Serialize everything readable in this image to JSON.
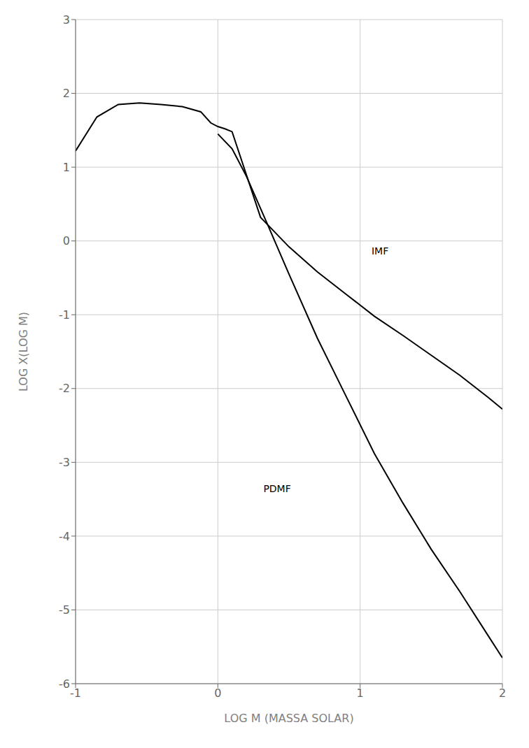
{
  "chart_data": {
    "type": "line",
    "xlabel": "LOG M (MASSA SOLAR)",
    "ylabel": "LOG X(LOG M)",
    "xlim": [
      -1,
      2
    ],
    "ylim": [
      -6,
      3
    ],
    "xticks": [
      -1,
      0,
      1,
      2
    ],
    "yticks": [
      -6,
      -5,
      -4,
      -3,
      -2,
      -1,
      0,
      1,
      2,
      3
    ],
    "grid": true,
    "series": [
      {
        "color": "#000000",
        "x": [
          -1.0,
          -0.85,
          -0.7,
          -0.55,
          -0.4,
          -0.25,
          -0.12,
          -0.05,
          0.0,
          0.05,
          0.1,
          0.3,
          0.32,
          0.5,
          0.7,
          0.9,
          1.1,
          1.3,
          1.5,
          1.7,
          1.9,
          2.0
        ],
        "values": [
          1.22,
          1.68,
          1.85,
          1.87,
          1.85,
          1.82,
          1.75,
          1.6,
          1.55,
          1.52,
          1.48,
          0.32,
          0.28,
          -0.08,
          -0.42,
          -0.72,
          -1.02,
          -1.28,
          -1.55,
          -1.82,
          -2.12,
          -2.28
        ]
      },
      {
        "color": "#000000",
        "x": [
          0.0,
          0.1,
          0.2,
          0.35,
          0.5,
          0.7,
          0.9,
          1.1,
          1.3,
          1.5,
          1.7,
          1.9,
          2.0
        ],
        "values": [
          1.45,
          1.25,
          0.88,
          0.22,
          -0.45,
          -1.32,
          -2.1,
          -2.88,
          -3.55,
          -4.18,
          -4.75,
          -5.35,
          -5.65
        ]
      }
    ],
    "annotations": [
      {
        "text": "IMF",
        "x": 1.08,
        "y": -0.18,
        "color": "#000000"
      },
      {
        "text": "PDMF",
        "x": 0.32,
        "y": -3.4,
        "color": "#000000"
      }
    ]
  }
}
